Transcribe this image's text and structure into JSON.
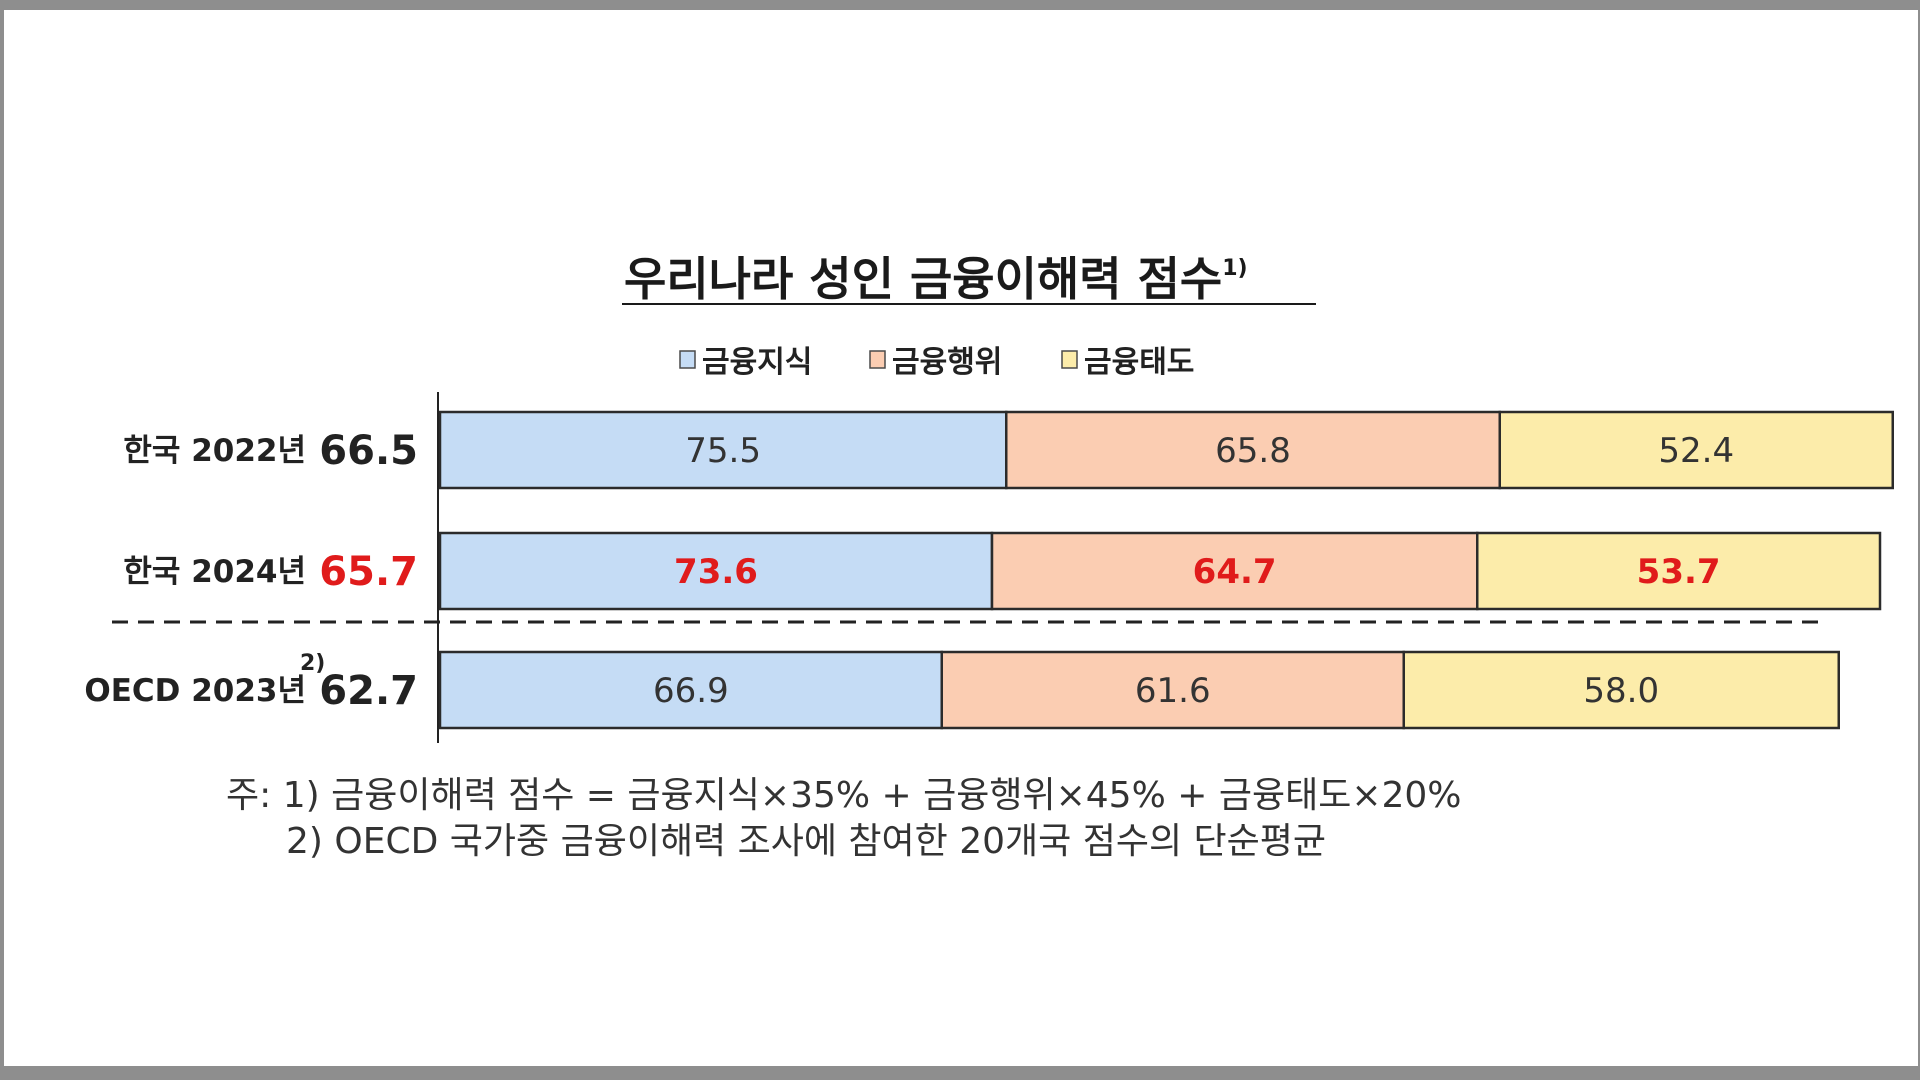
{
  "chart_data": {
    "type": "bar",
    "orientation": "horizontal",
    "stacked": true,
    "title": "우리나라 성인 금융이해력 점수",
    "title_footnote": "1)",
    "legend": [
      "금융지식",
      "금융행위",
      "금융태도"
    ],
    "legend_position": "top",
    "categories": [
      {
        "label": "한국 2022년",
        "footnote": "",
        "total": "66.5",
        "highlight": false
      },
      {
        "label": "한국 2024년",
        "footnote": "",
        "total": "65.7",
        "highlight": true
      },
      {
        "label": "OECD 2023년",
        "footnote": "2)",
        "total": "62.7",
        "highlight": false
      }
    ],
    "series": [
      {
        "name": "금융지식",
        "values": [
          75.5,
          73.6,
          66.9
        ],
        "labels": [
          "75.5",
          "73.6",
          "66.9"
        ],
        "color": "#c5dcf5"
      },
      {
        "name": "금융행위",
        "values": [
          65.8,
          64.7,
          61.6
        ],
        "labels": [
          "65.8",
          "64.7",
          "61.6"
        ],
        "color": "#fbcdb2"
      },
      {
        "name": "금융태도",
        "values": [
          52.4,
          53.7,
          58.0
        ],
        "labels": [
          "52.4",
          "53.7",
          "58.0"
        ],
        "color": "#fcecaa"
      }
    ],
    "grid": false
  },
  "colors": {
    "text": "#222222",
    "highlight": "#e01b1b",
    "bar_outline": "#2b2b2b"
  },
  "notes": [
    "주: 1) 금융이해력 점수 = 금융지식×35% + 금융행위×45% + 금융태도×20%",
    "2) OECD 국가중 금융이해력 조사에 참여한 20개국 점수의 단순평균"
  ]
}
